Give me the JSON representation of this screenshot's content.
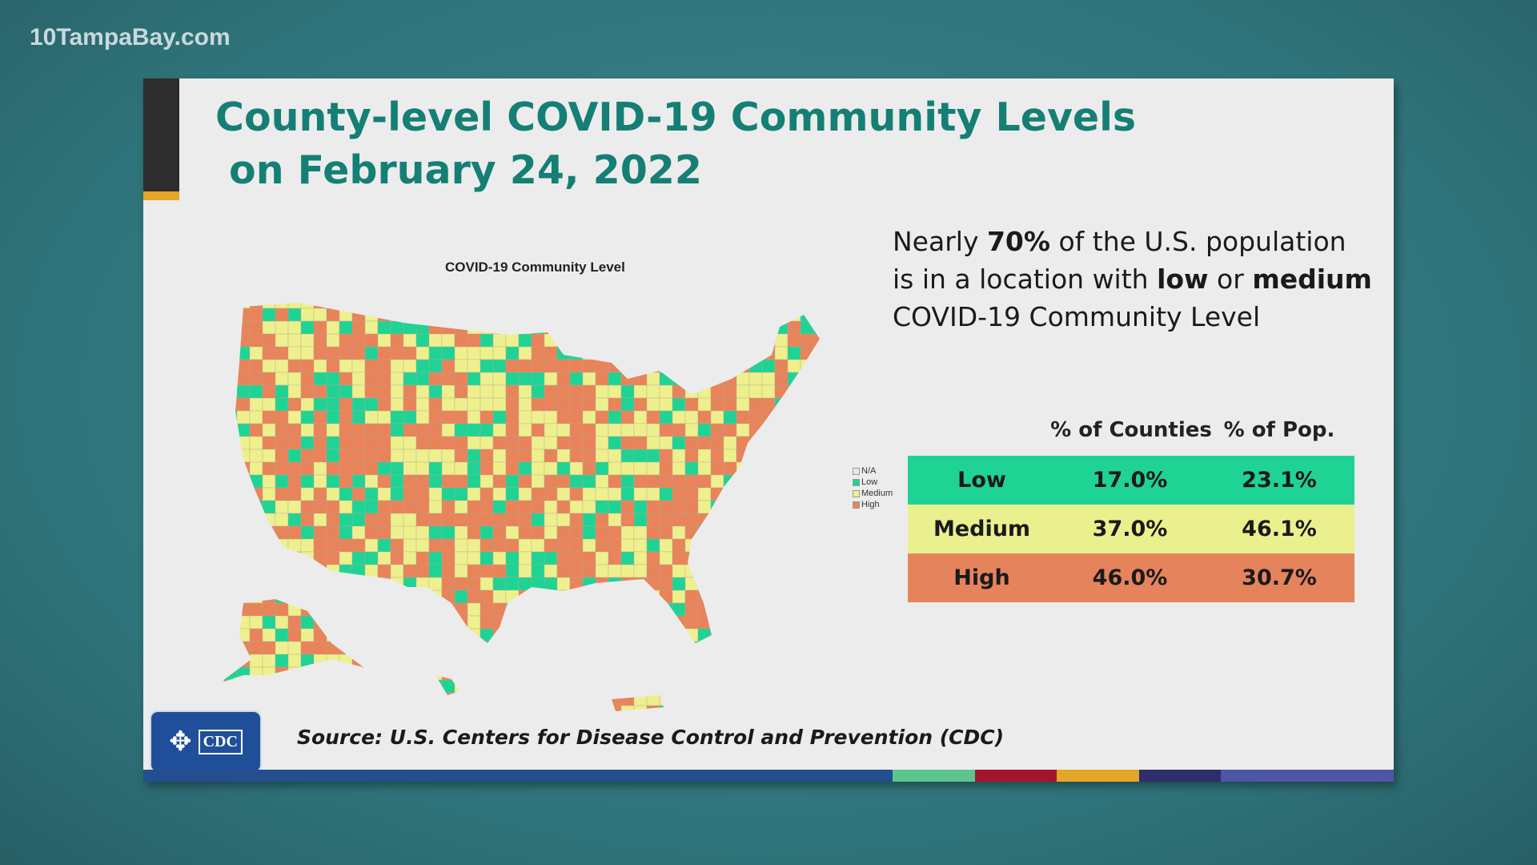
{
  "watermark": "10TampaBay.com",
  "slide": {
    "title": "County-level COVID-19 Community Levels\n on February 24, 2022",
    "map_title": "COVID-19 Community Level",
    "legend": [
      {
        "label": "N/A",
        "color": "#e8e8e8"
      },
      {
        "label": "Low",
        "color": "#1fd394"
      },
      {
        "label": "Medium",
        "color": "#eef08e"
      },
      {
        "label": "High",
        "color": "#e8835a"
      }
    ],
    "blurb": {
      "p1": "Nearly ",
      "b1": "70%",
      "p2": " of the U.S. population is in a location with ",
      "b2": "low",
      "p3": " or ",
      "b3": "medium",
      "p4": " COVID-19 Community Level"
    },
    "table": {
      "headers": [
        "% of Counties",
        "% of Pop."
      ],
      "rows": [
        {
          "level": "Low",
          "counties": "17.0%",
          "pop": "23.1%",
          "color": "#1fd394"
        },
        {
          "level": "Medium",
          "counties": "37.0%",
          "pop": "46.1%",
          "color": "#ebf08f"
        },
        {
          "level": "High",
          "counties": "46.0%",
          "pop": "30.7%",
          "color": "#e5845c"
        }
      ]
    },
    "logo_text": "CDC",
    "source": "Source: U.S. Centers for Disease Control and Prevention (CDC)"
  }
}
